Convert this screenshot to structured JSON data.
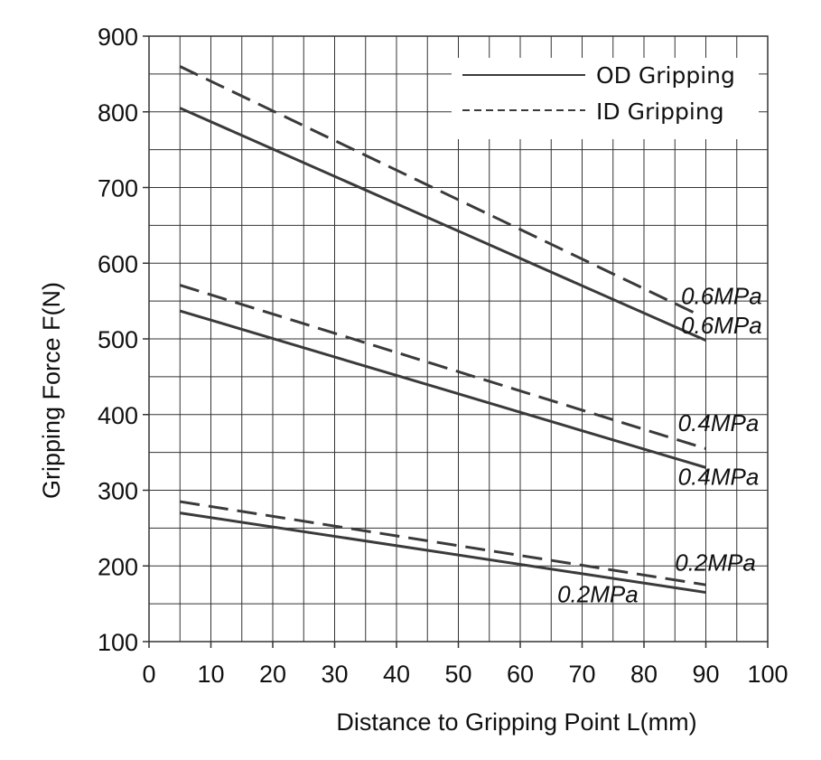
{
  "chart_data": {
    "type": "line",
    "xlabel": "Distance to Gripping Point L(mm)",
    "ylabel": "Gripping Force F(N)",
    "xlim": [
      0,
      100
    ],
    "ylim": [
      100,
      900
    ],
    "xticks": [
      0,
      10,
      20,
      30,
      40,
      50,
      60,
      70,
      80,
      90,
      100
    ],
    "yticks": [
      100,
      200,
      300,
      400,
      500,
      600,
      700,
      800,
      900
    ],
    "grid": true,
    "legend_position": "top-right",
    "legend": [
      {
        "label": "OD Gripping",
        "style": "solid"
      },
      {
        "label": "ID Gripping",
        "style": "dashed"
      }
    ],
    "series": [
      {
        "group": "OD Gripping",
        "style": "solid",
        "x": [
          5,
          90
        ],
        "y": [
          805,
          498
        ]
      },
      {
        "group": "ID Gripping",
        "style": "dashed",
        "x": [
          5,
          88
        ],
        "y": [
          860,
          535
        ]
      },
      {
        "group": "OD Gripping",
        "style": "solid",
        "x": [
          5,
          90
        ],
        "y": [
          537,
          330
        ]
      },
      {
        "group": "ID Gripping",
        "style": "dashed",
        "x": [
          5,
          90
        ],
        "y": [
          571,
          355
        ]
      },
      {
        "group": "OD Gripping",
        "style": "solid",
        "x": [
          5,
          90
        ],
        "y": [
          270,
          165
        ]
      },
      {
        "group": "ID Gripping",
        "style": "dashed",
        "x": [
          5,
          90
        ],
        "y": [
          285,
          175
        ]
      }
    ],
    "annotations": [
      {
        "text": "0.6MPa",
        "x": 86,
        "y": 546
      },
      {
        "text": "0.6MPa",
        "x": 86,
        "y": 507
      },
      {
        "text": "0.4MPa",
        "x": 85.5,
        "y": 378
      },
      {
        "text": "0.4MPa",
        "x": 85.5,
        "y": 307
      },
      {
        "text": "0.2MPa",
        "x": 85,
        "y": 194
      },
      {
        "text": "0.2MPa",
        "x": 66,
        "y": 152
      }
    ],
    "colors": {
      "line": "#3a3a3a",
      "grid": "#333333",
      "text": "#111111"
    }
  }
}
